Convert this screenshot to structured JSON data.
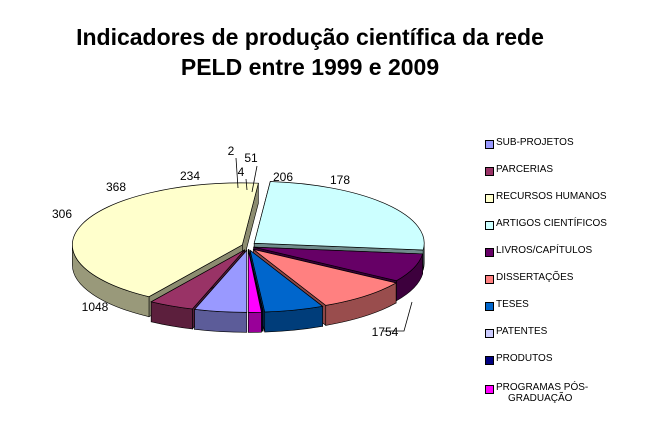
{
  "chart_data": {
    "type": "pie",
    "title_line1": "Indicadores de produção científica da rede",
    "title_line2": "PELD entre 1999 e 2009",
    "legend_position": "right",
    "categories": [
      "SUB-PROJETOS",
      "PARCERIAS",
      "RECURSOS HUMANOS",
      "ARTIGOS CIENTÍFICOS",
      "LIVROS/CAPÍTULOS",
      "DISSERTAÇÕES",
      "TESES",
      "PATENTES",
      "PRODUTOS",
      "PROGRAMAS PÓS-GRADUAÇÃO"
    ],
    "legend_labels": [
      "SUB-PROJETOS",
      "PARCERIAS",
      "RECURSOS HUMANOS",
      "ARTIGOS CIENTÍFICOS",
      "LIVROS/CAPÍTULOS",
      "DISSERTAÇÕES",
      "TESES",
      "PATENTES",
      "PRODUTOS",
      "PROGRAMAS PÓS-\nGRADUAÇÃO"
    ],
    "values": [
      206,
      178,
      1754,
      1048,
      306,
      368,
      234,
      2,
      4,
      51
    ],
    "colors": [
      "#9999ff",
      "#993366",
      "#ffffcc",
      "#ccffff",
      "#660066",
      "#ff8080",
      "#0066cc",
      "#ccccff",
      "#000080",
      "#ff00ff"
    ]
  }
}
